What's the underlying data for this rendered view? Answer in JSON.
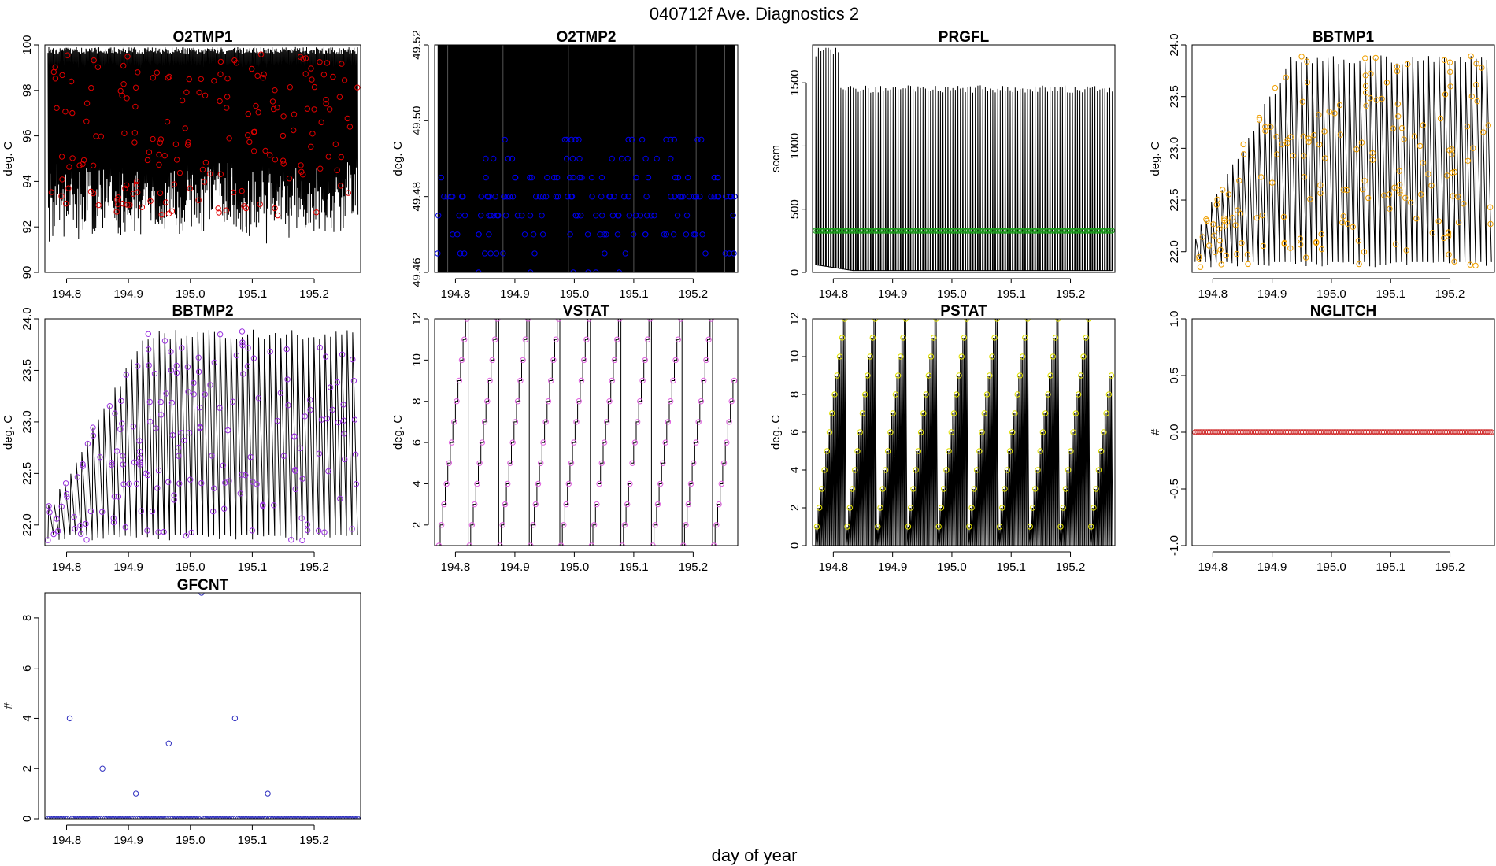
{
  "figure": {
    "title": "040712f   Ave. Diagnostics 2",
    "xlabel": "day of year"
  },
  "chart_data": [
    {
      "id": "o2tmp1",
      "type": "line",
      "title": "O2TMP1",
      "ylabel": "deg. C",
      "xlim": [
        194.765,
        195.275
      ],
      "ylim": [
        90,
        100
      ],
      "xticks": [
        194.8,
        194.9,
        195.0,
        195.1,
        195.2
      ],
      "yticks": [
        90,
        92,
        94,
        96,
        98,
        100
      ],
      "ytick_labels": [
        "90",
        "92",
        "94",
        "96",
        "98",
        "100"
      ],
      "x_range": [
        194.77,
        195.27
      ],
      "line": {
        "model": "noise",
        "low": [
          91.2,
          93.5
        ],
        "high": [
          99.9,
          99.9
        ],
        "n": 360,
        "color": "#000000"
      },
      "points": {
        "model": "random",
        "range": [
          92.5,
          99.6
        ],
        "n": 180,
        "color": "#e00000"
      }
    },
    {
      "id": "o2tmp2",
      "type": "line",
      "title": "O2TMP2",
      "ylabel": "deg. C",
      "xlim": [
        194.765,
        195.275
      ],
      "ylim": [
        49.46,
        49.52
      ],
      "xticks": [
        194.8,
        194.9,
        195.0,
        195.1,
        195.2
      ],
      "yticks": [
        49.46,
        49.48,
        49.5,
        49.52
      ],
      "ytick_labels": [
        "49.46",
        "49.48",
        "49.50",
        "49.52"
      ],
      "x_range": [
        194.77,
        195.27
      ],
      "line": {
        "model": "fill",
        "low": 49.46,
        "high": 49.52,
        "color": "#000000"
      },
      "points": {
        "model": "levels",
        "levels": [
          49.46,
          49.465,
          49.47,
          49.475,
          49.48,
          49.485,
          49.49,
          49.495
        ],
        "weights": [
          1,
          4,
          8,
          10,
          10,
          7,
          4,
          3
        ],
        "n": 180,
        "color": "#0000ee"
      }
    },
    {
      "id": "prgfl",
      "type": "line",
      "title": "PRGFL",
      "ylabel": "sccm",
      "xlim": [
        194.765,
        195.275
      ],
      "ylim": [
        0,
        1800
      ],
      "xticks": [
        194.8,
        194.9,
        195.0,
        195.1,
        195.2
      ],
      "yticks": [
        0,
        500,
        1000,
        1500
      ],
      "ytick_labels": [
        "0",
        "500",
        "1000",
        "1500"
      ],
      "x_range": [
        194.77,
        195.27
      ],
      "line": {
        "model": "spikes",
        "n_spikes": 120,
        "base_start": 60,
        "base_end": 15,
        "peak_early": 1680,
        "peak": 1480,
        "early_until": 194.81,
        "color": "#000000"
      },
      "points": {
        "model": "flat",
        "value": 330,
        "n": 180,
        "color": "#1a9a1a"
      }
    },
    {
      "id": "bbtmp1",
      "type": "line",
      "title": "BBTMP1",
      "ylabel": "deg. C",
      "xlim": [
        194.765,
        195.275
      ],
      "ylim": [
        21.8,
        24.0
      ],
      "xticks": [
        194.8,
        194.9,
        195.0,
        195.1,
        195.2
      ],
      "yticks": [
        22.0,
        22.5,
        23.0,
        23.5,
        24.0
      ],
      "ytick_labels": [
        "22.0",
        "22.5",
        "23.0",
        "23.5",
        "24.0"
      ],
      "x_range": [
        194.77,
        195.27
      ],
      "line": {
        "model": "saw",
        "periods": 56,
        "low": 21.85,
        "high_start": 22.2,
        "high_end": 23.9,
        "warmup_end": 194.93,
        "color": "#000000"
      },
      "points": {
        "model": "saw_sample",
        "n": 180,
        "color": "#f0a000"
      }
    },
    {
      "id": "bbtmp2",
      "type": "line",
      "title": "BBTMP2",
      "ylabel": "deg. C",
      "xlim": [
        194.765,
        195.275
      ],
      "ylim": [
        21.8,
        24.0
      ],
      "xticks": [
        194.8,
        194.9,
        195.0,
        195.1,
        195.2
      ],
      "yticks": [
        22.0,
        22.5,
        23.0,
        23.5,
        24.0
      ],
      "ytick_labels": [
        "22.0",
        "22.5",
        "23.0",
        "23.5",
        "24.0"
      ],
      "x_range": [
        194.77,
        195.27
      ],
      "line": {
        "model": "saw",
        "periods": 56,
        "low": 21.85,
        "high_start": 22.2,
        "high_end": 23.9,
        "warmup_end": 194.93,
        "color": "#000000"
      },
      "points": {
        "model": "saw_sample",
        "n": 180,
        "color": "#9a30e0"
      }
    },
    {
      "id": "vstat",
      "type": "line",
      "title": "VSTAT",
      "ylabel": "deg. C",
      "xlim": [
        194.765,
        195.275
      ],
      "ylim": [
        1,
        12
      ],
      "xticks": [
        194.8,
        194.9,
        195.0,
        195.1,
        195.2
      ],
      "yticks": [
        2,
        4,
        6,
        8,
        10,
        12
      ],
      "ytick_labels": [
        "2",
        "4",
        "6",
        "8",
        "10",
        "12"
      ],
      "x_range": [
        194.77,
        195.27
      ],
      "line": {
        "model": "stairs",
        "cycle": 12,
        "min": 1,
        "period": 0.0514,
        "color": "#000000"
      },
      "points": {
        "model": "stairs_sample",
        "color": "#e060e0"
      }
    },
    {
      "id": "pstat",
      "type": "line",
      "title": "PSTAT",
      "ylabel": "deg. C",
      "xlim": [
        194.765,
        195.275
      ],
      "ylim": [
        0,
        12
      ],
      "xticks": [
        194.8,
        194.9,
        195.0,
        195.1,
        195.2
      ],
      "yticks": [
        0,
        2,
        4,
        6,
        8,
        10,
        12
      ],
      "ytick_labels": [
        "0",
        "2",
        "4",
        "6",
        "8",
        "10",
        "12"
      ],
      "x_range": [
        194.77,
        195.27
      ],
      "line": {
        "model": "stair_spikes",
        "cycle": 12,
        "min": 1,
        "period": 0.0514,
        "base": 0,
        "color": "#000000"
      },
      "points": {
        "model": "stairs_sample",
        "color": "#e0e000"
      }
    },
    {
      "id": "nglitch",
      "type": "scatter",
      "title": "NGLITCH",
      "ylabel": "#",
      "xlim": [
        194.765,
        195.275
      ],
      "ylim": [
        -1,
        1
      ],
      "xticks": [
        194.8,
        194.9,
        195.0,
        195.1,
        195.2
      ],
      "yticks": [
        -1.0,
        -0.5,
        0.0,
        0.5,
        1.0
      ],
      "ytick_labels": [
        "-1.0",
        "-0.5",
        "0.0",
        "0.5",
        "1.0"
      ],
      "x_range": [
        194.77,
        195.27
      ],
      "points": {
        "model": "flat",
        "value": 0,
        "n": 180,
        "color": "#d03030"
      }
    },
    {
      "id": "gfcnt",
      "type": "scatter",
      "title": "GFCNT",
      "ylabel": "#",
      "xlim": [
        194.765,
        195.275
      ],
      "ylim": [
        0,
        9
      ],
      "xticks": [
        194.8,
        194.9,
        195.0,
        195.1,
        195.2
      ],
      "yticks": [
        0,
        2,
        4,
        6,
        8
      ],
      "ytick_labels": [
        "0",
        "2",
        "4",
        "6",
        "8"
      ],
      "x_range": [
        194.77,
        195.27
      ],
      "points": {
        "model": "flat_with_spikes",
        "value": 0,
        "n": 180,
        "color": "#3030c0",
        "spikes": [
          {
            "x": 194.805,
            "y": 4
          },
          {
            "x": 194.858,
            "y": 2
          },
          {
            "x": 194.912,
            "y": 1
          },
          {
            "x": 194.965,
            "y": 3
          },
          {
            "x": 195.018,
            "y": 9
          },
          {
            "x": 195.072,
            "y": 4
          },
          {
            "x": 195.125,
            "y": 1
          }
        ]
      }
    }
  ]
}
